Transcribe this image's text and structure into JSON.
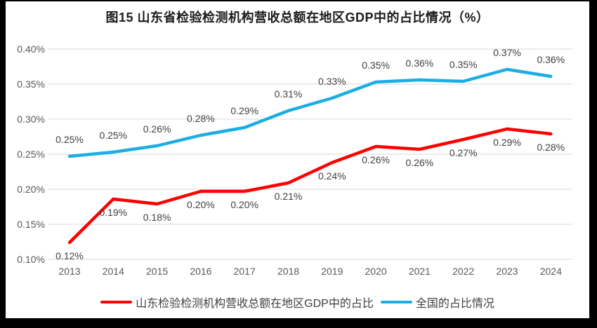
{
  "title": "图15  山东省检验检测机构营收总额在地区GDP中的占比情况（%）",
  "colors": {
    "shandong_line": "#FF0000",
    "national_line": "#1BAEE2",
    "gridline": "#D9D9D9",
    "axis_text": "#595959",
    "data_label_text": "#404040",
    "title_text": "#1A1A1A",
    "frame": "#000000",
    "background": "#FFFFFF"
  },
  "chart_data": {
    "type": "line",
    "title": "图15  山东省检验检测机构营收总额在地区GDP中的占比情况（%）",
    "categories": [
      "2013",
      "2014",
      "2015",
      "2016",
      "2017",
      "2018",
      "2019",
      "2020",
      "2021",
      "2022",
      "2023",
      "2024"
    ],
    "y_axis": {
      "min": 0.1,
      "max": 0.4,
      "step": 0.05,
      "unit": "%",
      "tick_labels": [
        "0.40%",
        "0.35%",
        "0.30%",
        "0.25%",
        "0.20%",
        "0.15%",
        "0.10%"
      ],
      "gridlines": true
    },
    "legend_position": "bottom",
    "series": [
      {
        "id": "shandong",
        "name": "山东检验检测机构营收总额在地区GDP中的占比",
        "color": "#FF0000",
        "label_position": "below",
        "values": [
          0.124,
          0.186,
          0.179,
          0.197,
          0.197,
          0.209,
          0.238,
          0.261,
          0.257,
          0.271,
          0.286,
          0.279
        ],
        "data_labels": [
          "0.12%",
          "0.19%",
          "0.18%",
          "0.20%",
          "0.20%",
          "0.21%",
          "0.24%",
          "0.26%",
          "0.26%",
          "0.27%",
          "0.29%",
          "0.28%"
        ]
      },
      {
        "id": "national",
        "name": "全国的占比情况",
        "color": "#1BAEE2",
        "label_position": "above",
        "values": [
          0.247,
          0.253,
          0.262,
          0.277,
          0.288,
          0.312,
          0.33,
          0.353,
          0.356,
          0.354,
          0.371,
          0.361
        ],
        "data_labels": [
          "0.25%",
          "0.25%",
          "0.26%",
          "0.28%",
          "0.29%",
          "0.31%",
          "0.33%",
          "0.35%",
          "0.36%",
          "0.35%",
          "0.37%",
          "0.36%"
        ]
      }
    ]
  }
}
